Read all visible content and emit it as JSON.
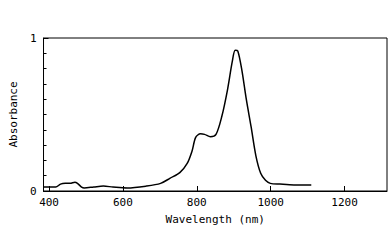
{
  "chart_data": {
    "type": "line",
    "x_label": "Wavelength (nm)",
    "y_label": "Absorbance",
    "x": [
      385,
      418,
      431,
      444,
      457,
      470,
      477,
      488,
      495,
      521,
      547,
      573,
      612,
      663,
      702,
      728,
      754,
      774,
      787,
      797,
      810,
      821,
      837,
      852,
      868,
      883,
      896,
      904,
      911,
      922,
      934,
      947,
      960,
      973,
      986,
      999,
      1025,
      1063,
      1110
    ],
    "values": [
      0.026,
      0.026,
      0.045,
      0.05,
      0.05,
      0.058,
      0.05,
      0.026,
      0.02,
      0.026,
      0.032,
      0.026,
      0.02,
      0.032,
      0.05,
      0.084,
      0.12,
      0.18,
      0.26,
      0.35,
      0.374,
      0.37,
      0.355,
      0.37,
      0.49,
      0.66,
      0.845,
      0.92,
      0.915,
      0.79,
      0.6,
      0.42,
      0.23,
      0.116,
      0.07,
      0.05,
      0.045,
      0.04,
      0.04
    ],
    "color": "#000000",
    "xlim": [
      385,
      1315
    ],
    "xticks": [
      400,
      600,
      800,
      1000,
      1200
    ],
    "ylim": [
      0,
      1
    ],
    "yticks": [
      0,
      1
    ],
    "grid": false
  }
}
